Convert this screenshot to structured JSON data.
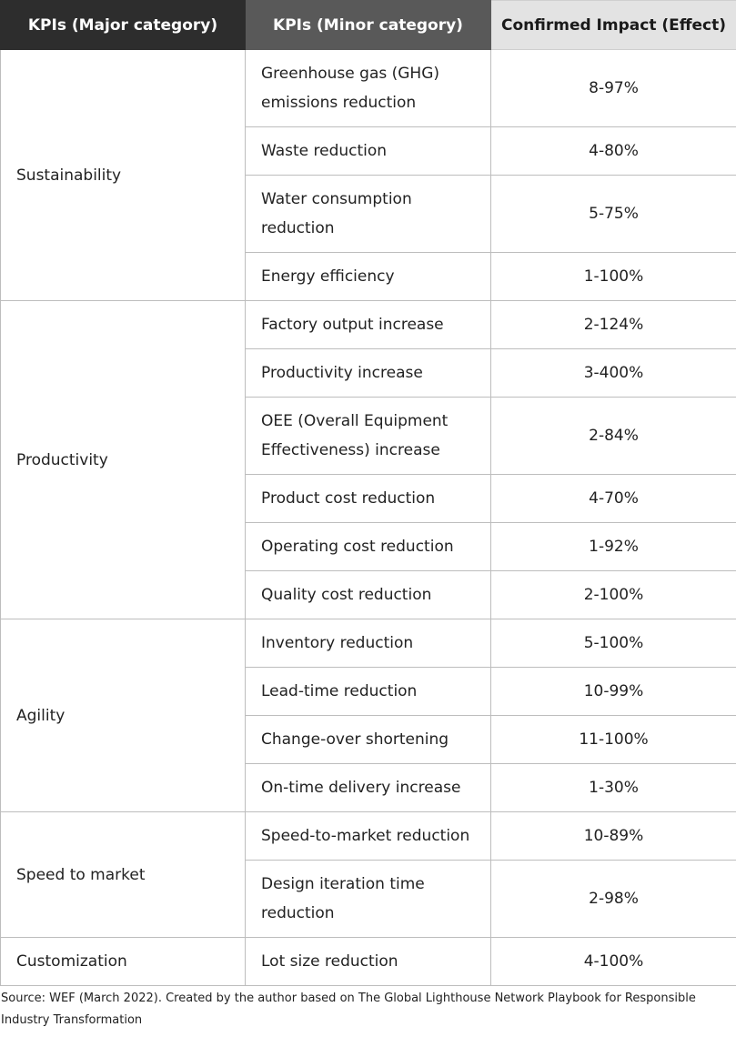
{
  "headers": {
    "major": "KPIs (Major category)",
    "minor": "KPIs (Minor category)",
    "impact": "Confirmed Impact (Effect)"
  },
  "groups": [
    {
      "major": "Sustainability",
      "rows": [
        {
          "minor": "Greenhouse gas (GHG) emissions reduction",
          "impact": "8-97%"
        },
        {
          "minor": "Waste reduction",
          "impact": "4-80%"
        },
        {
          "minor": "Water consumption reduction",
          "impact": "5-75%"
        },
        {
          "minor": "Energy efficiency",
          "impact": "1-100%"
        }
      ]
    },
    {
      "major": "Productivity",
      "rows": [
        {
          "minor": "Factory output increase",
          "impact": "2-124%"
        },
        {
          "minor": "Productivity increase",
          "impact": "3-400%"
        },
        {
          "minor": "OEE (Overall Equipment Effectiveness) increase",
          "impact": "2-84%"
        },
        {
          "minor": "Product cost reduction",
          "impact": "4-70%"
        },
        {
          "minor": "Operating cost reduction",
          "impact": "1-92%"
        },
        {
          "minor": "Quality cost reduction",
          "impact": "2-100%"
        }
      ]
    },
    {
      "major": "Agility",
      "rows": [
        {
          "minor": "Inventory reduction",
          "impact": "5-100%"
        },
        {
          "minor": "Lead-time reduction",
          "impact": "10-99%"
        },
        {
          "minor": "Change-over shortening",
          "impact": "11-100%"
        },
        {
          "minor": "On-time delivery increase",
          "impact": "1-30%"
        }
      ]
    },
    {
      "major": "Speed to market",
      "rows": [
        {
          "minor": "Speed-to-market reduction",
          "impact": "10-89%"
        },
        {
          "minor": "Design iteration time reduction",
          "impact": "2-98%"
        }
      ]
    },
    {
      "major": "Customization",
      "rows": [
        {
          "minor": "Lot size reduction",
          "impact": "4-100%"
        }
      ]
    }
  ],
  "source": "Source: WEF (March 2022). Created by the author based on The Global Lighthouse Network Playbook for Responsible Industry Transformation"
}
